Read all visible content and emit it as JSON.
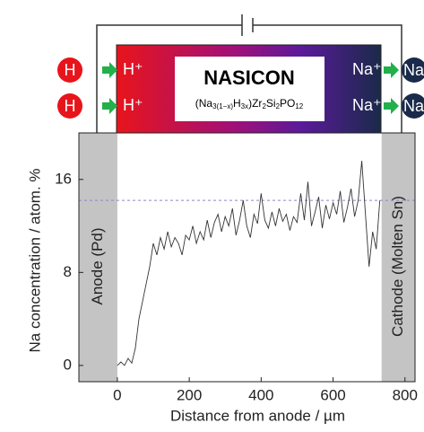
{
  "diagram": {
    "left_ions": [
      {
        "symbol": "H",
        "label": "H⁺"
      },
      {
        "symbol": "H",
        "label": "H⁺"
      }
    ],
    "right_ions": [
      {
        "symbol": "Na",
        "label": "Na⁺"
      },
      {
        "symbol": "Na",
        "label": "Na⁺"
      }
    ],
    "membrane": "NASICON",
    "formula_parts": [
      "(Na",
      "3(1−x)",
      "H",
      "3x",
      ")Zr",
      "2",
      "Si",
      "2",
      "PO",
      "12"
    ]
  },
  "chart_data": {
    "type": "line",
    "x_label": "Distance from anode / µm",
    "y_label": "Na concentration / atom. %",
    "xlim": [
      -107,
      828
    ],
    "ylim": [
      -1.4,
      20
    ],
    "xticks": [
      0,
      200,
      400,
      600,
      800
    ],
    "yticks": [
      0,
      8,
      16
    ],
    "reference_line": 14.2,
    "regions": [
      {
        "label": "Anode (Pd)",
        "xlim": [
          -107,
          0
        ]
      },
      {
        "label": "Cathode (Molten Sn)",
        "xlim": [
          735,
          828
        ]
      }
    ],
    "x": [
      0,
      10,
      20,
      30,
      40,
      50,
      60,
      70,
      80,
      90,
      100,
      110,
      120,
      130,
      140,
      150,
      160,
      170,
      180,
      190,
      200,
      210,
      220,
      230,
      240,
      250,
      260,
      270,
      280,
      290,
      300,
      310,
      320,
      330,
      340,
      350,
      360,
      370,
      380,
      390,
      400,
      410,
      420,
      430,
      440,
      450,
      460,
      470,
      480,
      490,
      500,
      510,
      520,
      530,
      540,
      550,
      560,
      570,
      580,
      590,
      600,
      610,
      620,
      630,
      640,
      650,
      660,
      670,
      680,
      690,
      700,
      710,
      720,
      730
    ],
    "series": [
      {
        "color": "#333333",
        "values": [
          0,
          0.3,
          0,
          0.6,
          0.2,
          1.5,
          4,
          5.5,
          7,
          8.5,
          10.5,
          9.5,
          11,
          10,
          11.5,
          10.2,
          11,
          10.5,
          9.5,
          11.2,
          10.8,
          12,
          10.5,
          11.5,
          10.8,
          12.5,
          11,
          12.3,
          13,
          11.5,
          12.8,
          12,
          13.5,
          11.2,
          12.5,
          14.2,
          12,
          11,
          13,
          12.2,
          14.8,
          12.5,
          11.8,
          13.2,
          12,
          13.5,
          12.4,
          13,
          11.6,
          12.8,
          12.3,
          14.8,
          12.5,
          15.8,
          12,
          13.2,
          14.5,
          11.8,
          13.8,
          12.6,
          14,
          13,
          15,
          12.3,
          13.6,
          15.2,
          12.8,
          14.2,
          17.6,
          13,
          8.5,
          11.5,
          10,
          14.2
        ]
      }
    ]
  }
}
